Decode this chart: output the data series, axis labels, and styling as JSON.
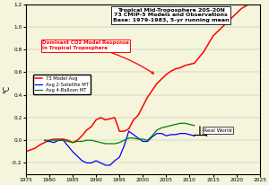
{
  "title": "Tropical Mid-Troposphere 20S-20N\n73 CMIP-5 Models and Observations\nBase: 1979-1983, 5-yr running mean",
  "ylabel": "°C",
  "xlim": [
    1975,
    2025
  ],
  "ylim": [
    -0.3,
    1.2
  ],
  "xticks": [
    1975,
    1980,
    1985,
    1990,
    1995,
    2000,
    2005,
    2010,
    2015,
    2020,
    2025
  ],
  "yticks": [
    -0.2,
    0.0,
    0.2,
    0.4,
    0.6,
    0.8,
    1.0,
    1.2
  ],
  "model_color": "#FF0000",
  "satellite_color": "#0000FF",
  "balloon_color": "#008000",
  "background_color": "#F5F5DC",
  "legend_labels": [
    "73 Model Avg",
    "Avg 2-Satellite MT",
    "Avg 4-Balloon MT"
  ],
  "annotation_text": "Dominant CO2 Model Response\nin Tropical Troposphere",
  "real_world_label": "Real World",
  "model_x": [
    1975,
    1977,
    1978,
    1979,
    1980,
    1981,
    1982,
    1983,
    1984,
    1985,
    1986,
    1987,
    1988,
    1989,
    1990,
    1991,
    1992,
    1993,
    1994,
    1995,
    1996,
    1997,
    1998,
    1999,
    2000,
    2001,
    2002,
    2003,
    2004,
    2005,
    2006,
    2007,
    2008,
    2009,
    2010,
    2011,
    2013,
    2015,
    2017,
    2019,
    2021,
    2023
  ],
  "model_y": [
    -0.1,
    -0.07,
    -0.04,
    -0.02,
    0.0,
    0.01,
    0.01,
    0.01,
    0.0,
    -0.02,
    0.0,
    0.04,
    0.09,
    0.12,
    0.18,
    0.2,
    0.18,
    0.19,
    0.2,
    0.08,
    0.08,
    0.1,
    0.18,
    0.22,
    0.3,
    0.38,
    0.44,
    0.5,
    0.54,
    0.58,
    0.61,
    0.63,
    0.64,
    0.66,
    0.67,
    0.68,
    0.78,
    0.92,
    1.0,
    1.08,
    1.16,
    1.21
  ],
  "sat_x": [
    1979,
    1980,
    1981,
    1982,
    1983,
    1984,
    1985,
    1986,
    1987,
    1988,
    1989,
    1990,
    1991,
    1992,
    1993,
    1994,
    1995,
    1996,
    1997,
    1998,
    1999,
    2000,
    2001,
    2002,
    2003,
    2004,
    2005,
    2006,
    2007,
    2008,
    2009,
    2010,
    2011
  ],
  "sat_y": [
    0.0,
    -0.01,
    -0.02,
    0.0,
    0.0,
    -0.05,
    -0.1,
    -0.14,
    -0.18,
    -0.2,
    -0.2,
    -0.18,
    -0.2,
    -0.22,
    -0.22,
    -0.18,
    -0.15,
    -0.05,
    0.08,
    0.05,
    0.02,
    -0.01,
    -0.01,
    0.03,
    0.06,
    0.06,
    0.04,
    0.05,
    0.05,
    0.06,
    0.06,
    0.05,
    0.04
  ],
  "bal_x": [
    1979,
    1980,
    1981,
    1982,
    1983,
    1984,
    1985,
    1986,
    1987,
    1988,
    1989,
    1990,
    1991,
    1992,
    1993,
    1994,
    1995,
    1996,
    1997,
    1998,
    1999,
    2000,
    2001,
    2002,
    2003,
    2004,
    2005,
    2006,
    2007,
    2008,
    2009,
    2010,
    2011
  ],
  "bal_y": [
    0.0,
    0.0,
    0.0,
    0.0,
    0.0,
    -0.01,
    -0.02,
    -0.01,
    -0.01,
    0.0,
    0.0,
    -0.01,
    -0.02,
    -0.03,
    -0.03,
    -0.03,
    -0.02,
    0.0,
    0.02,
    0.02,
    0.01,
    0.01,
    0.0,
    0.04,
    0.09,
    0.11,
    0.12,
    0.13,
    0.14,
    0.15,
    0.15,
    0.14,
    0.13
  ]
}
